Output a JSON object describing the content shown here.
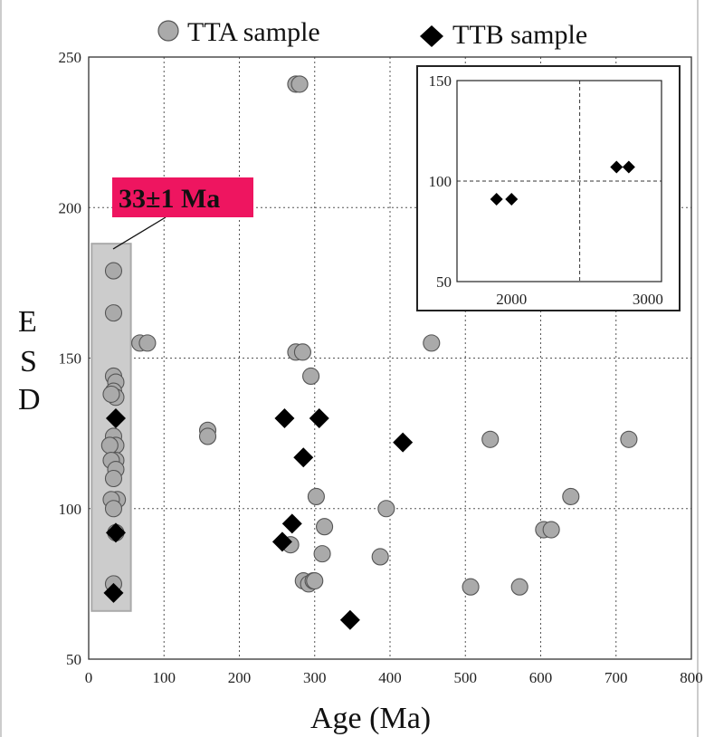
{
  "chart_data": [
    {
      "type": "scatter",
      "title": "",
      "xlabel": "Age (Ma)",
      "ylabel": "E S D",
      "ylabel_letters": [
        "E",
        "S",
        "D"
      ],
      "xlim": [
        0,
        800
      ],
      "ylim": [
        50,
        250
      ],
      "xticks": [
        0,
        100,
        200,
        300,
        400,
        500,
        600,
        700,
        800
      ],
      "yticks": [
        50,
        100,
        150,
        200,
        250
      ],
      "grid": "dotted",
      "legend": "top",
      "annotation": {
        "text": "33±1 Ma",
        "color": "#ee1560",
        "highlight_x": [
          4,
          56
        ],
        "highlight_y": [
          66,
          188
        ],
        "highlight_color": "#cccccc"
      },
      "series": [
        {
          "name": "TTA sample",
          "marker": "circle",
          "color": "#aaaaaa",
          "points": [
            [
              33,
              179
            ],
            [
              33,
              165
            ],
            [
              68,
              155
            ],
            [
              78,
              155
            ],
            [
              33,
              144
            ],
            [
              36,
              142
            ],
            [
              33,
              139
            ],
            [
              36,
              137
            ],
            [
              30,
              138
            ],
            [
              33,
              124
            ],
            [
              36,
              121
            ],
            [
              28,
              121
            ],
            [
              36,
              116
            ],
            [
              30,
              116
            ],
            [
              36,
              113
            ],
            [
              33,
              110
            ],
            [
              38,
              103
            ],
            [
              30,
              103
            ],
            [
              33,
              100
            ],
            [
              36,
              92
            ],
            [
              33,
              75
            ],
            [
              275,
              241
            ],
            [
              280,
              241
            ],
            [
              275,
              152
            ],
            [
              284,
              152
            ],
            [
              295,
              144
            ],
            [
              158,
              126
            ],
            [
              158,
              124
            ],
            [
              455,
              155
            ],
            [
              533,
              123
            ],
            [
              717,
              123
            ],
            [
              302,
              104
            ],
            [
              640,
              104
            ],
            [
              395,
              100
            ],
            [
              313,
              94
            ],
            [
              604,
              93
            ],
            [
              614,
              93
            ],
            [
              268,
              88
            ],
            [
              310,
              85
            ],
            [
              387,
              84
            ],
            [
              285,
              76
            ],
            [
              292,
              75
            ],
            [
              298,
              76
            ],
            [
              300,
              76
            ],
            [
              507,
              74
            ],
            [
              572,
              74
            ]
          ]
        },
        {
          "name": "TTB sample",
          "marker": "diamond",
          "color": "#000000",
          "points": [
            [
              36,
              130
            ],
            [
              36,
              92
            ],
            [
              33,
              72
            ],
            [
              260,
              130
            ],
            [
              306,
              130
            ],
            [
              417,
              122
            ],
            [
              285,
              117
            ],
            [
              270,
              95
            ],
            [
              257,
              89
            ],
            [
              347,
              63
            ]
          ]
        }
      ]
    },
    {
      "type": "scatter",
      "title": "",
      "inset": true,
      "xlim": [
        1600,
        3100
      ],
      "ylim": [
        50,
        150
      ],
      "xticks": [
        2000,
        3000
      ],
      "yticks": [
        50,
        100,
        150
      ],
      "grid": "dashed",
      "series": [
        {
          "name": "TTB sample",
          "marker": "diamond",
          "color": "#000000",
          "points": [
            [
              1890,
              91
            ],
            [
              2000,
              91
            ],
            [
              2770,
              107
            ],
            [
              2860,
              107
            ]
          ]
        }
      ]
    }
  ]
}
